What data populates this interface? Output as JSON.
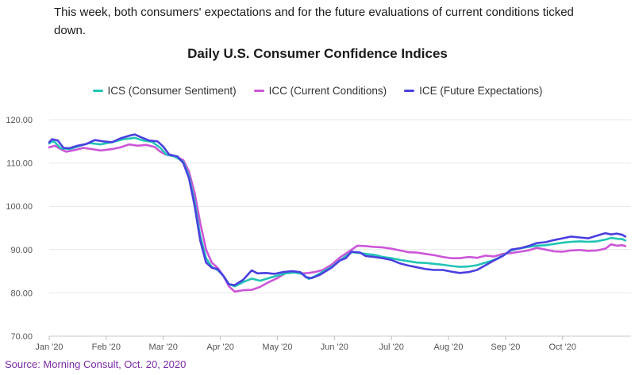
{
  "intro_text": "This week, both consumers' expectations and for the future evaluations of current conditions ticked down.",
  "source": "Source: Morning Consult, Oct. 20, 2020",
  "chart_data": {
    "type": "line",
    "title": "Daily U.S. Consumer Confidence Indices",
    "xlabel": "",
    "ylabel": "",
    "ylim": [
      70,
      120
    ],
    "yticks": [
      70,
      80,
      90,
      100,
      110,
      120
    ],
    "ytick_labels": [
      "70.00",
      "80.00",
      "90.00",
      "100.00",
      "110.00",
      "120.00"
    ],
    "x_ticks": [
      "Jan '20",
      "Feb '20",
      "Mar '20",
      "Apr '20",
      "May '20",
      "Jun '20",
      "Jul '20",
      "Aug '20",
      "Sep '20",
      "Oct '20"
    ],
    "x_domain_months": [
      0,
      10.2
    ],
    "grid": true,
    "legend_position": "top-center",
    "series": [
      {
        "name": "ICS (Consumer Sentiment)",
        "color": "#20c5b5",
        "points": [
          [
            0,
            114.5
          ],
          [
            0.05,
            115.0
          ],
          [
            0.1,
            114.8
          ],
          [
            0.2,
            113.4
          ],
          [
            0.35,
            113.2
          ],
          [
            0.5,
            113.8
          ],
          [
            0.7,
            114.6
          ],
          [
            0.9,
            114.3
          ],
          [
            1.1,
            114.8
          ],
          [
            1.3,
            115.5
          ],
          [
            1.5,
            115.8
          ],
          [
            1.65,
            115.2
          ],
          [
            1.8,
            114.9
          ],
          [
            1.95,
            113.5
          ],
          [
            2.05,
            112.0
          ],
          [
            2.2,
            111.5
          ],
          [
            2.35,
            110.3
          ],
          [
            2.45,
            107.0
          ],
          [
            2.55,
            101.0
          ],
          [
            2.65,
            93.0
          ],
          [
            2.75,
            88.0
          ],
          [
            2.85,
            86.0
          ],
          [
            2.95,
            85.3
          ],
          [
            3.05,
            84.0
          ],
          [
            3.15,
            82.0
          ],
          [
            3.25,
            81.5
          ],
          [
            3.4,
            82.5
          ],
          [
            3.55,
            83.3
          ],
          [
            3.7,
            82.8
          ],
          [
            3.85,
            83.4
          ],
          [
            4.0,
            84.0
          ],
          [
            4.15,
            84.5
          ],
          [
            4.3,
            84.7
          ],
          [
            4.45,
            84.3
          ],
          [
            4.55,
            83.2
          ],
          [
            4.65,
            83.8
          ],
          [
            4.8,
            84.9
          ],
          [
            4.95,
            86.0
          ],
          [
            5.1,
            87.5
          ],
          [
            5.2,
            88.5
          ],
          [
            5.3,
            89.4
          ],
          [
            5.45,
            89.2
          ],
          [
            5.55,
            89.0
          ],
          [
            5.7,
            88.8
          ],
          [
            5.85,
            88.3
          ],
          [
            6.0,
            88.0
          ],
          [
            6.15,
            87.6
          ],
          [
            6.3,
            87.3
          ],
          [
            6.45,
            87.0
          ],
          [
            6.6,
            86.9
          ],
          [
            6.75,
            86.7
          ],
          [
            6.9,
            86.5
          ],
          [
            7.05,
            86.2
          ],
          [
            7.2,
            86.0
          ],
          [
            7.35,
            86.1
          ],
          [
            7.5,
            86.4
          ],
          [
            7.65,
            87.0
          ],
          [
            7.8,
            87.6
          ],
          [
            7.95,
            88.6
          ],
          [
            8.1,
            89.8
          ],
          [
            8.25,
            90.3
          ],
          [
            8.4,
            90.6
          ],
          [
            8.55,
            90.9
          ],
          [
            8.7,
            91.0
          ],
          [
            8.85,
            91.3
          ],
          [
            9.0,
            91.6
          ],
          [
            9.15,
            91.8
          ],
          [
            9.3,
            91.9
          ],
          [
            9.45,
            91.8
          ],
          [
            9.6,
            91.9
          ],
          [
            9.75,
            92.3
          ],
          [
            9.85,
            92.7
          ],
          [
            9.95,
            92.5
          ],
          [
            10.05,
            92.4
          ],
          [
            10.1,
            92.1
          ]
        ]
      },
      {
        "name": "ICC (Current Conditions)",
        "color": "#cc55d8",
        "points": [
          [
            0,
            113.6
          ],
          [
            0.1,
            114.0
          ],
          [
            0.2,
            113.2
          ],
          [
            0.3,
            112.6
          ],
          [
            0.45,
            113.0
          ],
          [
            0.6,
            113.5
          ],
          [
            0.75,
            113.2
          ],
          [
            0.9,
            112.9
          ],
          [
            1.1,
            113.2
          ],
          [
            1.25,
            113.6
          ],
          [
            1.4,
            114.3
          ],
          [
            1.55,
            114.0
          ],
          [
            1.7,
            114.2
          ],
          [
            1.85,
            113.7
          ],
          [
            1.95,
            112.6
          ],
          [
            2.05,
            111.9
          ],
          [
            2.2,
            111.5
          ],
          [
            2.35,
            110.7
          ],
          [
            2.45,
            108.0
          ],
          [
            2.55,
            103.0
          ],
          [
            2.65,
            96.0
          ],
          [
            2.75,
            90.0
          ],
          [
            2.85,
            87.0
          ],
          [
            2.95,
            85.8
          ],
          [
            3.05,
            84.0
          ],
          [
            3.15,
            81.5
          ],
          [
            3.25,
            80.3
          ],
          [
            3.4,
            80.6
          ],
          [
            3.55,
            80.7
          ],
          [
            3.7,
            81.4
          ],
          [
            3.85,
            82.5
          ],
          [
            4.0,
            83.4
          ],
          [
            4.15,
            84.6
          ],
          [
            4.3,
            85.0
          ],
          [
            4.45,
            84.5
          ],
          [
            4.55,
            84.6
          ],
          [
            4.65,
            84.8
          ],
          [
            4.8,
            85.3
          ],
          [
            4.95,
            86.5
          ],
          [
            5.1,
            88.2
          ],
          [
            5.25,
            89.5
          ],
          [
            5.4,
            90.9
          ],
          [
            5.55,
            90.8
          ],
          [
            5.7,
            90.6
          ],
          [
            5.85,
            90.5
          ],
          [
            6.0,
            90.2
          ],
          [
            6.15,
            89.8
          ],
          [
            6.3,
            89.4
          ],
          [
            6.45,
            89.3
          ],
          [
            6.6,
            89.0
          ],
          [
            6.75,
            88.7
          ],
          [
            6.9,
            88.3
          ],
          [
            7.05,
            88.0
          ],
          [
            7.2,
            88.0
          ],
          [
            7.35,
            88.3
          ],
          [
            7.5,
            88.1
          ],
          [
            7.65,
            88.6
          ],
          [
            7.8,
            88.4
          ],
          [
            7.95,
            89.0
          ],
          [
            8.1,
            89.2
          ],
          [
            8.25,
            89.5
          ],
          [
            8.4,
            89.8
          ],
          [
            8.55,
            90.4
          ],
          [
            8.7,
            90.0
          ],
          [
            8.85,
            89.6
          ],
          [
            9.0,
            89.5
          ],
          [
            9.15,
            89.8
          ],
          [
            9.3,
            89.9
          ],
          [
            9.45,
            89.7
          ],
          [
            9.6,
            89.8
          ],
          [
            9.75,
            90.2
          ],
          [
            9.85,
            91.2
          ],
          [
            9.95,
            90.9
          ],
          [
            10.05,
            91.0
          ],
          [
            10.1,
            90.8
          ]
        ]
      },
      {
        "name": "ICE (Future Expectations)",
        "color": "#4a3fe0",
        "points": [
          [
            0,
            114.8
          ],
          [
            0.05,
            115.5
          ],
          [
            0.15,
            115.2
          ],
          [
            0.25,
            113.5
          ],
          [
            0.35,
            113.4
          ],
          [
            0.5,
            114.0
          ],
          [
            0.65,
            114.4
          ],
          [
            0.8,
            115.3
          ],
          [
            0.95,
            115.0
          ],
          [
            1.1,
            114.8
          ],
          [
            1.25,
            115.7
          ],
          [
            1.4,
            116.3
          ],
          [
            1.5,
            116.6
          ],
          [
            1.6,
            116.0
          ],
          [
            1.75,
            115.2
          ],
          [
            1.9,
            115.0
          ],
          [
            2.0,
            113.8
          ],
          [
            2.1,
            112.0
          ],
          [
            2.25,
            111.5
          ],
          [
            2.35,
            110.0
          ],
          [
            2.45,
            106.5
          ],
          [
            2.55,
            100.0
          ],
          [
            2.65,
            92.0
          ],
          [
            2.75,
            87.0
          ],
          [
            2.85,
            85.8
          ],
          [
            2.95,
            85.5
          ],
          [
            3.05,
            84.0
          ],
          [
            3.15,
            82.0
          ],
          [
            3.25,
            81.8
          ],
          [
            3.4,
            83.0
          ],
          [
            3.55,
            85.2
          ],
          [
            3.65,
            84.5
          ],
          [
            3.8,
            84.6
          ],
          [
            3.95,
            84.4
          ],
          [
            4.1,
            84.8
          ],
          [
            4.25,
            85.0
          ],
          [
            4.4,
            84.8
          ],
          [
            4.5,
            83.6
          ],
          [
            4.6,
            83.4
          ],
          [
            4.75,
            84.2
          ],
          [
            4.95,
            85.8
          ],
          [
            5.1,
            87.5
          ],
          [
            5.2,
            88.0
          ],
          [
            5.3,
            89.5
          ],
          [
            5.45,
            89.3
          ],
          [
            5.55,
            88.5
          ],
          [
            5.7,
            88.3
          ],
          [
            5.85,
            88.0
          ],
          [
            6.0,
            87.6
          ],
          [
            6.15,
            86.8
          ],
          [
            6.3,
            86.3
          ],
          [
            6.45,
            85.9
          ],
          [
            6.6,
            85.5
          ],
          [
            6.75,
            85.3
          ],
          [
            6.9,
            85.3
          ],
          [
            7.05,
            84.9
          ],
          [
            7.2,
            84.6
          ],
          [
            7.35,
            84.8
          ],
          [
            7.5,
            85.3
          ],
          [
            7.65,
            86.4
          ],
          [
            7.8,
            87.5
          ],
          [
            7.95,
            88.5
          ],
          [
            8.1,
            90.0
          ],
          [
            8.25,
            90.3
          ],
          [
            8.4,
            90.8
          ],
          [
            8.55,
            91.5
          ],
          [
            8.7,
            91.7
          ],
          [
            8.85,
            92.2
          ],
          [
            9.0,
            92.6
          ],
          [
            9.15,
            93.0
          ],
          [
            9.3,
            92.8
          ],
          [
            9.45,
            92.6
          ],
          [
            9.6,
            93.2
          ],
          [
            9.75,
            93.8
          ],
          [
            9.85,
            93.5
          ],
          [
            9.95,
            93.7
          ],
          [
            10.05,
            93.4
          ],
          [
            10.1,
            93.0
          ]
        ]
      }
    ]
  }
}
